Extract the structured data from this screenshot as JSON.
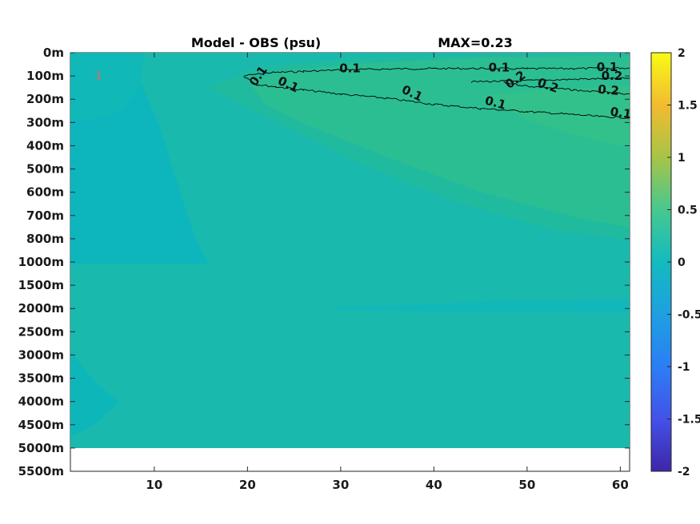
{
  "chart_data": {
    "type": "heatmap",
    "title": "Model - OBS (psu)",
    "subtitle": "MAX=0.23",
    "xlabel": "",
    "ylabel": "",
    "xlim": [
      1,
      61
    ],
    "x_ticks": [
      10,
      20,
      30,
      40,
      50,
      60
    ],
    "y_tick_labels": [
      "0m",
      "100m",
      "200m",
      "300m",
      "400m",
      "500m",
      "600m",
      "700m",
      "800m",
      "1000m",
      "1500m",
      "2000m",
      "2500m",
      "3000m",
      "3500m",
      "4000m",
      "4500m",
      "5000m",
      "5500m"
    ],
    "data_extent_label": "5000m",
    "colorbar": {
      "min": -2,
      "max": 2,
      "ticks": [
        2,
        1.5,
        1,
        0.5,
        0,
        -0.5,
        -1,
        -1.5,
        -2
      ],
      "tick_labels": [
        "2",
        "1.5",
        "1",
        "0.5",
        "0",
        "-0.5",
        "-1",
        "-1.5",
        "-2"
      ],
      "colormap": "parula"
    },
    "background_value": 0.0,
    "regions": [
      {
        "value": 0.13,
        "shade": "#2ebe8f"
      },
      {
        "value": 0.2,
        "shade": "#34c188"
      },
      {
        "value": 0.07,
        "shade": "#22ba9e"
      },
      {
        "value": -0.1,
        "shade": "#0bb5bf"
      }
    ],
    "contours": [
      {
        "level": 0.1,
        "points": [
          [
            19.6,
            100
          ],
          [
            22,
            87
          ],
          [
            26,
            80
          ],
          [
            30,
            74
          ],
          [
            35,
            70
          ],
          [
            40,
            68
          ],
          [
            45,
            68
          ],
          [
            50,
            69
          ],
          [
            55,
            68
          ],
          [
            60,
            66
          ],
          [
            61,
            66
          ]
        ],
        "labels": [
          {
            "text": "0.1",
            "x": 21.5,
            "y": 110,
            "rotate": -55
          },
          {
            "text": "0.1",
            "x": 31,
            "y": 85,
            "rotate": 0
          },
          {
            "text": "0.1",
            "x": 47,
            "y": 80,
            "rotate": 0
          },
          {
            "text": "0.1",
            "x": 58.6,
            "y": 79,
            "rotate": 0
          }
        ]
      },
      {
        "level": 0.1,
        "points": [
          [
            19.6,
            100
          ],
          [
            21,
            137
          ],
          [
            23,
            146
          ],
          [
            26,
            160
          ],
          [
            30,
            178
          ],
          [
            35,
            196
          ],
          [
            40,
            222
          ],
          [
            45,
            240
          ],
          [
            50,
            253
          ],
          [
            55,
            266
          ],
          [
            58,
            275
          ],
          [
            61,
            280
          ]
        ],
        "labels": [
          {
            "text": "0.1",
            "x": 24.2,
            "y": 152,
            "rotate": 25
          },
          {
            "text": "0.1",
            "x": 37.5,
            "y": 190,
            "rotate": 25
          },
          {
            "text": "0.1",
            "x": 46.5,
            "y": 232,
            "rotate": 15
          },
          {
            "text": "0.1",
            "x": 60,
            "y": 276,
            "rotate": 8
          }
        ]
      },
      {
        "level": 0.2,
        "points": [
          [
            44,
            125
          ],
          [
            48,
            122
          ],
          [
            52,
            118
          ],
          [
            56,
            113
          ],
          [
            61,
            110
          ]
        ],
        "labels": [
          {
            "text": "0.2",
            "x": 59.1,
            "y": 116,
            "rotate": 0
          }
        ]
      },
      {
        "level": 0.2,
        "points": [
          [
            47.5,
            128
          ],
          [
            50,
            143
          ],
          [
            52,
            150
          ],
          [
            55,
            160
          ],
          [
            58,
            170
          ],
          [
            61,
            180
          ]
        ],
        "labels": [
          {
            "text": "0.2",
            "x": 49,
            "y": 130,
            "rotate": -35
          },
          {
            "text": "0.2",
            "x": 52.1,
            "y": 157,
            "rotate": 20
          },
          {
            "text": "0.2",
            "x": 58.7,
            "y": 178,
            "rotate": 5
          }
        ]
      }
    ],
    "stray_labels": [
      {
        "text": "1",
        "x": 4,
        "y": 98
      }
    ]
  }
}
